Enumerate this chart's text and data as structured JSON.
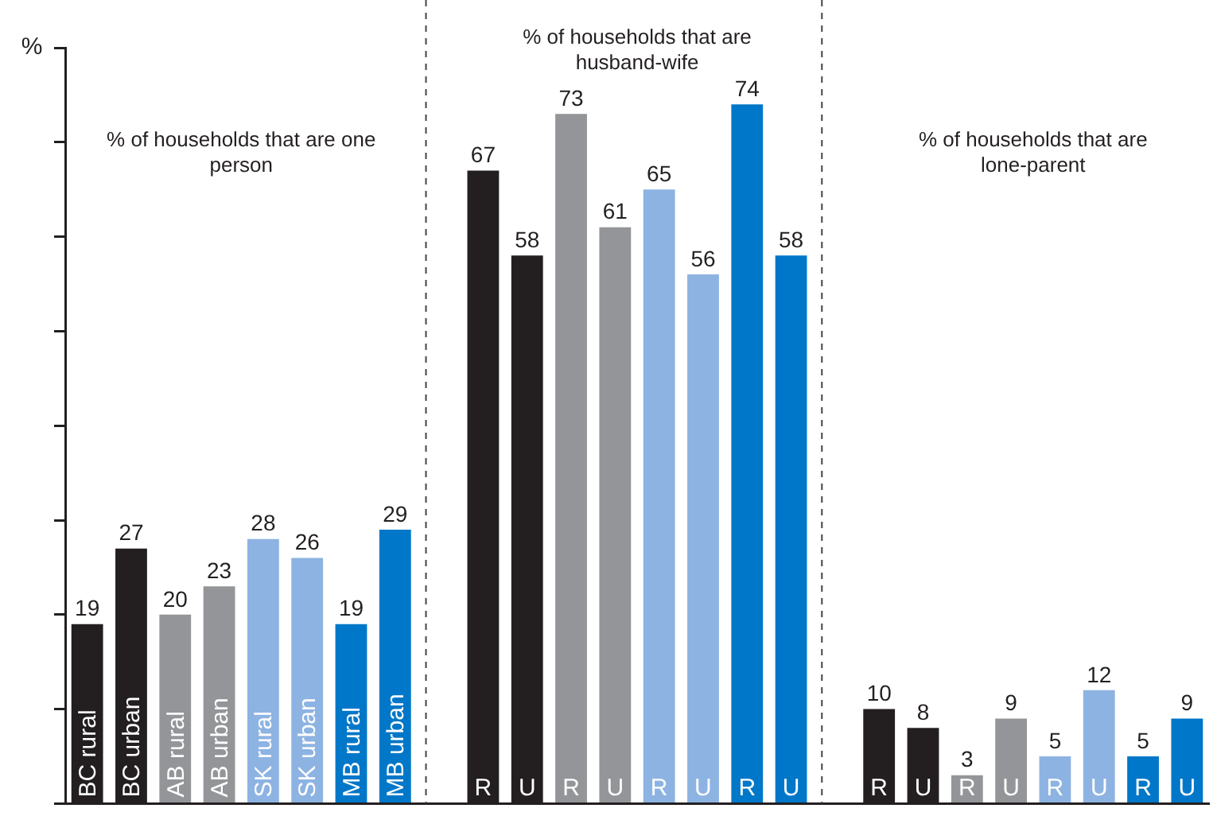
{
  "chart_data": {
    "type": "bar",
    "ylabel": "%",
    "categories": [
      "BC rural",
      "BC urban",
      "AB rural",
      "AB urban",
      "SK rural",
      "SK urban",
      "MB rural",
      "MB urban",
      null,
      "R",
      "U",
      "R",
      "U",
      "R",
      "U",
      "R",
      "U",
      null,
      "R",
      "U",
      "R",
      "U",
      "R",
      "U",
      "R",
      "U"
    ],
    "values": [
      19,
      27,
      20,
      23,
      28,
      26,
      19,
      29,
      null,
      67,
      58,
      73,
      61,
      65,
      56,
      74,
      58,
      null,
      10,
      8,
      3,
      9,
      5,
      12,
      5,
      9
    ],
    "colors": [
      "#231f20",
      "#231f20",
      "#939598",
      "#939598",
      "#8db3e2",
      "#8db3e2",
      "#0077c8",
      "#0077c8",
      null,
      "#231f20",
      "#231f20",
      "#939598",
      "#939598",
      "#8db3e2",
      "#8db3e2",
      "#0077c8",
      "#0077c8",
      null,
      "#231f20",
      "#231f20",
      "#939598",
      "#939598",
      "#8db3e2",
      "#8db3e2",
      "#0077c8",
      "#0077c8"
    ],
    "annotations": [
      "% of households that are one person",
      "% of households that are husband-wife",
      "% of households that are lone-parent"
    ],
    "ylim": [
      0,
      80
    ],
    "yticks": [
      {
        "value": 0,
        "label": null
      },
      {
        "value": 10,
        "label": null
      },
      {
        "value": 20,
        "label": null
      },
      {
        "value": 30,
        "label": null
      },
      {
        "value": 40,
        "label": null
      },
      {
        "value": 50,
        "label": null
      },
      {
        "value": 60,
        "label": null
      },
      {
        "value": 70,
        "label": null
      },
      {
        "value": 80,
        "label": null
      }
    ],
    "data_labels": true,
    "grid": false,
    "legend": false
  }
}
